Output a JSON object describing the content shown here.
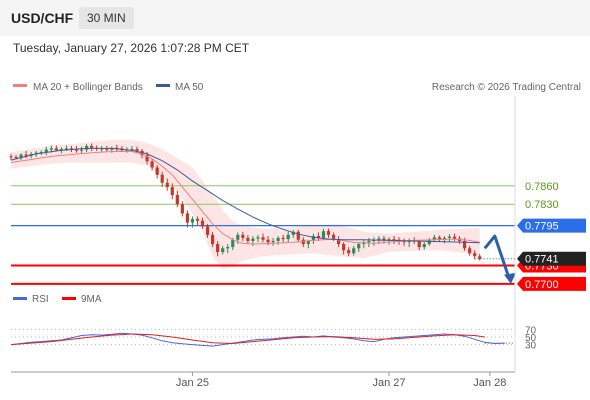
{
  "header": {
    "symbol": "USD/CHF",
    "timeframe": "30 MIN"
  },
  "datetime": "Tuesday, January 27, 2026 1:07:28 PM CET",
  "legend": {
    "ma20": "MA 20 + Bollinger Bands",
    "ma50": "MA 50",
    "credit": "Research © 2026 Trading Central"
  },
  "rsi_legend": {
    "rsi": "RSI",
    "ma9": "9MA"
  },
  "colors": {
    "ma20": "#f08080",
    "ma50": "#3a5a9a",
    "band": "#fcdcdc",
    "support": "#ff0000",
    "resistance_line": "#88c860",
    "resistance_text": "#5a9a20",
    "pivot": "#2a6ee8",
    "candle_up": "#2e8b57",
    "candle_down": "#c0392b",
    "current": "#222222",
    "rsi": "#4169e1"
  },
  "chart_data": {
    "type": "candlestick",
    "y_range": [
      0.769,
      0.8
    ],
    "x_range": [
      0,
      100
    ],
    "x_ticks": [
      {
        "x": 36,
        "label": "Jan 25"
      },
      {
        "x": 75,
        "label": "Jan 27"
      },
      {
        "x": 95,
        "label": "Jan 28"
      }
    ],
    "price_levels": [
      {
        "value": 0.786,
        "label": "0.7860",
        "kind": "resistance"
      },
      {
        "value": 0.783,
        "label": "0.7830",
        "kind": "resistance"
      },
      {
        "value": 0.7795,
        "label": "0.7795",
        "kind": "pivot"
      },
      {
        "value": 0.773,
        "label": "0.7730",
        "kind": "support"
      },
      {
        "value": 0.77,
        "label": "0.7700",
        "kind": "support"
      }
    ],
    "current_price": {
      "value": 0.7741,
      "label": "0.7741"
    },
    "candles": [
      [
        0,
        0.7908,
        0.7912,
        0.7902,
        0.7907
      ],
      [
        1,
        0.7907,
        0.791,
        0.7903,
        0.7906
      ],
      [
        2,
        0.7906,
        0.7913,
        0.7902,
        0.7911
      ],
      [
        3,
        0.7911,
        0.7917,
        0.7905,
        0.7909
      ],
      [
        4,
        0.7909,
        0.7915,
        0.7905,
        0.7912
      ],
      [
        5,
        0.7912,
        0.7917,
        0.7907,
        0.7914
      ],
      [
        6,
        0.7914,
        0.7918,
        0.791,
        0.7915
      ],
      [
        7,
        0.7915,
        0.7924,
        0.791,
        0.7919
      ],
      [
        8,
        0.7919,
        0.7926,
        0.7914,
        0.7921
      ],
      [
        9,
        0.7921,
        0.7926,
        0.7916,
        0.7918
      ],
      [
        10,
        0.7918,
        0.7923,
        0.7913,
        0.792
      ],
      [
        11,
        0.792,
        0.7926,
        0.7917,
        0.7921
      ],
      [
        12,
        0.7921,
        0.7925,
        0.7915,
        0.7919
      ],
      [
        13,
        0.7919,
        0.7925,
        0.7914,
        0.7918
      ],
      [
        14,
        0.7918,
        0.7924,
        0.7912,
        0.7919
      ],
      [
        15,
        0.7919,
        0.7928,
        0.7915,
        0.7925
      ],
      [
        16,
        0.7925,
        0.7929,
        0.7917,
        0.7922
      ],
      [
        17,
        0.7922,
        0.7926,
        0.7917,
        0.792
      ],
      [
        18,
        0.792,
        0.7925,
        0.7915,
        0.7921
      ],
      [
        19,
        0.7921,
        0.7925,
        0.7915,
        0.7919
      ],
      [
        20,
        0.7919,
        0.7924,
        0.7914,
        0.7922
      ],
      [
        21,
        0.7922,
        0.7927,
        0.7917,
        0.7921
      ],
      [
        22,
        0.7921,
        0.7925,
        0.7916,
        0.7918
      ],
      [
        23,
        0.7918,
        0.7923,
        0.7914,
        0.7919
      ],
      [
        24,
        0.7919,
        0.7925,
        0.7915,
        0.792
      ],
      [
        25,
        0.792,
        0.7924,
        0.7913,
        0.7917
      ],
      [
        26,
        0.7917,
        0.792,
        0.7905,
        0.791
      ],
      [
        27,
        0.791,
        0.7915,
        0.7895,
        0.79
      ],
      [
        28,
        0.79,
        0.7904,
        0.7885,
        0.789
      ],
      [
        29,
        0.789,
        0.7894,
        0.7872,
        0.7878
      ],
      [
        30,
        0.7878,
        0.7883,
        0.7858,
        0.7865
      ],
      [
        31,
        0.7865,
        0.7872,
        0.7852,
        0.7858
      ],
      [
        32,
        0.7858,
        0.7864,
        0.7838,
        0.7845
      ],
      [
        33,
        0.7845,
        0.7852,
        0.7825,
        0.783
      ],
      [
        34,
        0.783,
        0.7835,
        0.781,
        0.7815
      ],
      [
        35,
        0.7815,
        0.782,
        0.7792,
        0.78
      ],
      [
        36,
        0.78,
        0.781,
        0.7792,
        0.7806
      ],
      [
        37,
        0.7806,
        0.781,
        0.7796,
        0.7803
      ],
      [
        38,
        0.7803,
        0.7808,
        0.779,
        0.7794
      ],
      [
        39,
        0.7794,
        0.7798,
        0.7775,
        0.778
      ],
      [
        40,
        0.778,
        0.7785,
        0.776,
        0.7765
      ],
      [
        41,
        0.7765,
        0.777,
        0.7745,
        0.7752
      ],
      [
        42,
        0.7752,
        0.7762,
        0.7748,
        0.7758
      ],
      [
        43,
        0.7758,
        0.7765,
        0.775,
        0.776
      ],
      [
        44,
        0.776,
        0.7775,
        0.7755,
        0.7772
      ],
      [
        45,
        0.7772,
        0.7784,
        0.7765,
        0.778
      ],
      [
        46,
        0.778,
        0.7785,
        0.777,
        0.7775
      ],
      [
        47,
        0.7775,
        0.778,
        0.7765,
        0.777
      ],
      [
        48,
        0.777,
        0.7778,
        0.7762,
        0.7774
      ],
      [
        49,
        0.7774,
        0.778,
        0.7768,
        0.7776
      ],
      [
        50,
        0.7776,
        0.7782,
        0.7768,
        0.7772
      ],
      [
        51,
        0.7772,
        0.7778,
        0.7763,
        0.7768
      ],
      [
        52,
        0.7768,
        0.7775,
        0.7762,
        0.777
      ],
      [
        53,
        0.777,
        0.7778,
        0.7764,
        0.7775
      ],
      [
        54,
        0.7775,
        0.778,
        0.7768,
        0.7773
      ],
      [
        55,
        0.7773,
        0.7785,
        0.7768,
        0.778
      ],
      [
        56,
        0.778,
        0.7788,
        0.7775,
        0.7785
      ],
      [
        57,
        0.7785,
        0.7788,
        0.7768,
        0.7772
      ],
      [
        58,
        0.7772,
        0.7776,
        0.776,
        0.7765
      ],
      [
        59,
        0.7765,
        0.7772,
        0.7758,
        0.777
      ],
      [
        60,
        0.777,
        0.7782,
        0.7765,
        0.7778
      ],
      [
        61,
        0.7778,
        0.7784,
        0.777,
        0.7775
      ],
      [
        62,
        0.7775,
        0.779,
        0.7772,
        0.7786
      ],
      [
        63,
        0.7786,
        0.779,
        0.7775,
        0.778
      ],
      [
        64,
        0.778,
        0.7784,
        0.777,
        0.7773
      ],
      [
        65,
        0.7773,
        0.7778,
        0.776,
        0.7765
      ],
      [
        66,
        0.7765,
        0.7768,
        0.7748,
        0.7755
      ],
      [
        67,
        0.7755,
        0.776,
        0.7745,
        0.775
      ],
      [
        68,
        0.775,
        0.7762,
        0.7746,
        0.7758
      ],
      [
        69,
        0.7758,
        0.7768,
        0.7752,
        0.7765
      ],
      [
        70,
        0.7765,
        0.7772,
        0.7758,
        0.7768
      ],
      [
        71,
        0.7768,
        0.7775,
        0.776,
        0.777
      ],
      [
        72,
        0.777,
        0.7776,
        0.7762,
        0.7772
      ],
      [
        73,
        0.7772,
        0.7778,
        0.7765,
        0.7774
      ],
      [
        74,
        0.7774,
        0.7778,
        0.7766,
        0.7771
      ],
      [
        75,
        0.7771,
        0.7776,
        0.7764,
        0.7773
      ],
      [
        76,
        0.7773,
        0.7778,
        0.7765,
        0.7772
      ],
      [
        77,
        0.7772,
        0.7776,
        0.7764,
        0.777
      ],
      [
        78,
        0.777,
        0.7774,
        0.7762,
        0.7768
      ],
      [
        79,
        0.7768,
        0.7774,
        0.776,
        0.7771
      ],
      [
        80,
        0.7771,
        0.7776,
        0.7765,
        0.7769
      ],
      [
        81,
        0.7769,
        0.7772,
        0.7755,
        0.776
      ],
      [
        82,
        0.776,
        0.7768,
        0.7756,
        0.7765
      ],
      [
        83,
        0.7765,
        0.7775,
        0.7762,
        0.7772
      ],
      [
        84,
        0.7772,
        0.778,
        0.7768,
        0.7776
      ],
      [
        85,
        0.7776,
        0.7779,
        0.7768,
        0.7772
      ],
      [
        86,
        0.7772,
        0.7778,
        0.7766,
        0.7775
      ],
      [
        87,
        0.7775,
        0.7781,
        0.7769,
        0.7777
      ],
      [
        88,
        0.7777,
        0.7782,
        0.777,
        0.7774
      ],
      [
        89,
        0.7774,
        0.7778,
        0.7765,
        0.777
      ],
      [
        90,
        0.777,
        0.7775,
        0.7754,
        0.7758
      ],
      [
        91,
        0.7758,
        0.7762,
        0.7746,
        0.775
      ],
      [
        92,
        0.775,
        0.7755,
        0.774,
        0.7745
      ],
      [
        93,
        0.7745,
        0.7749,
        0.7738,
        0.7741
      ]
    ],
    "ma20": [
      [
        0,
        0.7898
      ],
      [
        4,
        0.7903
      ],
      [
        8,
        0.7908
      ],
      [
        12,
        0.7911
      ],
      [
        16,
        0.7914
      ],
      [
        20,
        0.7916
      ],
      [
        24,
        0.7916
      ],
      [
        26,
        0.7912
      ],
      [
        28,
        0.7904
      ],
      [
        30,
        0.7892
      ],
      [
        32,
        0.7878
      ],
      [
        34,
        0.7858
      ],
      [
        36,
        0.7838
      ],
      [
        38,
        0.7818
      ],
      [
        40,
        0.7798
      ],
      [
        42,
        0.7782
      ],
      [
        44,
        0.7772
      ],
      [
        46,
        0.7766
      ],
      [
        48,
        0.7765
      ],
      [
        52,
        0.7766
      ],
      [
        56,
        0.7768
      ],
      [
        60,
        0.7771
      ],
      [
        64,
        0.7773
      ],
      [
        68,
        0.7768
      ],
      [
        72,
        0.7766
      ],
      [
        76,
        0.7769
      ],
      [
        80,
        0.7771
      ],
      [
        84,
        0.7772
      ],
      [
        88,
        0.7773
      ],
      [
        91,
        0.7771
      ],
      [
        93,
        0.7768
      ]
    ],
    "ma50": [
      [
        0,
        0.7902
      ],
      [
        5,
        0.7912
      ],
      [
        10,
        0.7918
      ],
      [
        15,
        0.7921
      ],
      [
        20,
        0.7921
      ],
      [
        24,
        0.7918
      ],
      [
        27,
        0.7912
      ],
      [
        30,
        0.7901
      ],
      [
        33,
        0.7886
      ],
      [
        36,
        0.7868
      ],
      [
        39,
        0.7852
      ],
      [
        42,
        0.7836
      ],
      [
        45,
        0.7822
      ],
      [
        48,
        0.7809
      ],
      [
        51,
        0.7798
      ],
      [
        54,
        0.7789
      ],
      [
        57,
        0.7781
      ],
      [
        60,
        0.7776
      ],
      [
        63,
        0.7773
      ],
      [
        66,
        0.7772
      ],
      [
        70,
        0.7772
      ],
      [
        75,
        0.7771
      ],
      [
        80,
        0.777
      ],
      [
        85,
        0.7769
      ],
      [
        90,
        0.7768
      ],
      [
        93,
        0.7767
      ]
    ],
    "bb_upper": [
      [
        0,
        0.7915
      ],
      [
        4,
        0.792
      ],
      [
        8,
        0.7925
      ],
      [
        12,
        0.7928
      ],
      [
        16,
        0.7932
      ],
      [
        20,
        0.7935
      ],
      [
        24,
        0.7935
      ],
      [
        27,
        0.793
      ],
      [
        30,
        0.792
      ],
      [
        33,
        0.7905
      ],
      [
        36,
        0.789
      ],
      [
        38,
        0.7868
      ],
      [
        40,
        0.7845
      ],
      [
        42,
        0.782
      ],
      [
        44,
        0.7802
      ],
      [
        46,
        0.7795
      ],
      [
        50,
        0.779
      ],
      [
        55,
        0.7792
      ],
      [
        60,
        0.7795
      ],
      [
        65,
        0.7797
      ],
      [
        70,
        0.7785
      ],
      [
        75,
        0.7782
      ],
      [
        80,
        0.7785
      ],
      [
        85,
        0.7788
      ],
      [
        90,
        0.779
      ],
      [
        93,
        0.7792
      ]
    ],
    "bb_lower": [
      [
        0,
        0.7888
      ],
      [
        4,
        0.7892
      ],
      [
        8,
        0.7896
      ],
      [
        12,
        0.7898
      ],
      [
        16,
        0.7898
      ],
      [
        20,
        0.7898
      ],
      [
        24,
        0.7898
      ],
      [
        27,
        0.7893
      ],
      [
        30,
        0.7875
      ],
      [
        33,
        0.785
      ],
      [
        36,
        0.7815
      ],
      [
        38,
        0.7785
      ],
      [
        40,
        0.7745
      ],
      [
        42,
        0.7725
      ],
      [
        44,
        0.7728
      ],
      [
        46,
        0.7738
      ],
      [
        50,
        0.7745
      ],
      [
        55,
        0.7748
      ],
      [
        60,
        0.775
      ],
      [
        65,
        0.7745
      ],
      [
        70,
        0.7742
      ],
      [
        75,
        0.7752
      ],
      [
        80,
        0.7754
      ],
      [
        85,
        0.7755
      ],
      [
        90,
        0.775
      ],
      [
        93,
        0.7745
      ]
    ],
    "forecast_arrow": [
      [
        94,
        0.7758
      ],
      [
        96,
        0.7778
      ],
      [
        99,
        0.7705
      ]
    ],
    "rsi": {
      "y_range": [
        0,
        100
      ],
      "ticks": [
        70,
        50,
        30
      ],
      "values": [
        [
          0,
          30
        ],
        [
          2,
          33
        ],
        [
          4,
          36
        ],
        [
          6,
          38
        ],
        [
          8,
          40
        ],
        [
          10,
          42
        ],
        [
          12,
          48
        ],
        [
          14,
          54
        ],
        [
          16,
          56
        ],
        [
          18,
          55
        ],
        [
          20,
          57
        ],
        [
          22,
          60
        ],
        [
          24,
          58
        ],
        [
          26,
          55
        ],
        [
          28,
          48
        ],
        [
          30,
          40
        ],
        [
          32,
          35
        ],
        [
          34,
          32
        ],
        [
          36,
          30
        ],
        [
          38,
          28
        ],
        [
          40,
          26
        ],
        [
          42,
          30
        ],
        [
          44,
          34
        ],
        [
          46,
          38
        ],
        [
          48,
          42
        ],
        [
          50,
          44
        ],
        [
          52,
          45
        ],
        [
          54,
          48
        ],
        [
          56,
          50
        ],
        [
          58,
          52
        ],
        [
          60,
          50
        ],
        [
          62,
          53
        ],
        [
          64,
          50
        ],
        [
          66,
          48
        ],
        [
          68,
          45
        ],
        [
          70,
          40
        ],
        [
          72,
          38
        ],
        [
          74,
          44
        ],
        [
          76,
          48
        ],
        [
          78,
          50
        ],
        [
          80,
          52
        ],
        [
          82,
          54
        ],
        [
          84,
          56
        ],
        [
          86,
          58
        ],
        [
          88,
          56
        ],
        [
          90,
          52
        ],
        [
          92,
          44
        ],
        [
          94,
          36
        ],
        [
          96,
          33
        ],
        [
          98,
          34
        ]
      ],
      "ma9": [
        [
          0,
          30
        ],
        [
          4,
          34
        ],
        [
          8,
          38
        ],
        [
          12,
          44
        ],
        [
          16,
          50
        ],
        [
          20,
          55
        ],
        [
          24,
          58
        ],
        [
          28,
          56
        ],
        [
          32,
          50
        ],
        [
          36,
          42
        ],
        [
          40,
          35
        ],
        [
          44,
          33
        ],
        [
          48,
          38
        ],
        [
          52,
          43
        ],
        [
          56,
          48
        ],
        [
          60,
          50
        ],
        [
          64,
          51
        ],
        [
          68,
          48
        ],
        [
          72,
          44
        ],
        [
          76,
          45
        ],
        [
          80,
          49
        ],
        [
          84,
          53
        ],
        [
          88,
          56
        ],
        [
          92,
          54
        ],
        [
          94,
          50
        ]
      ]
    }
  }
}
